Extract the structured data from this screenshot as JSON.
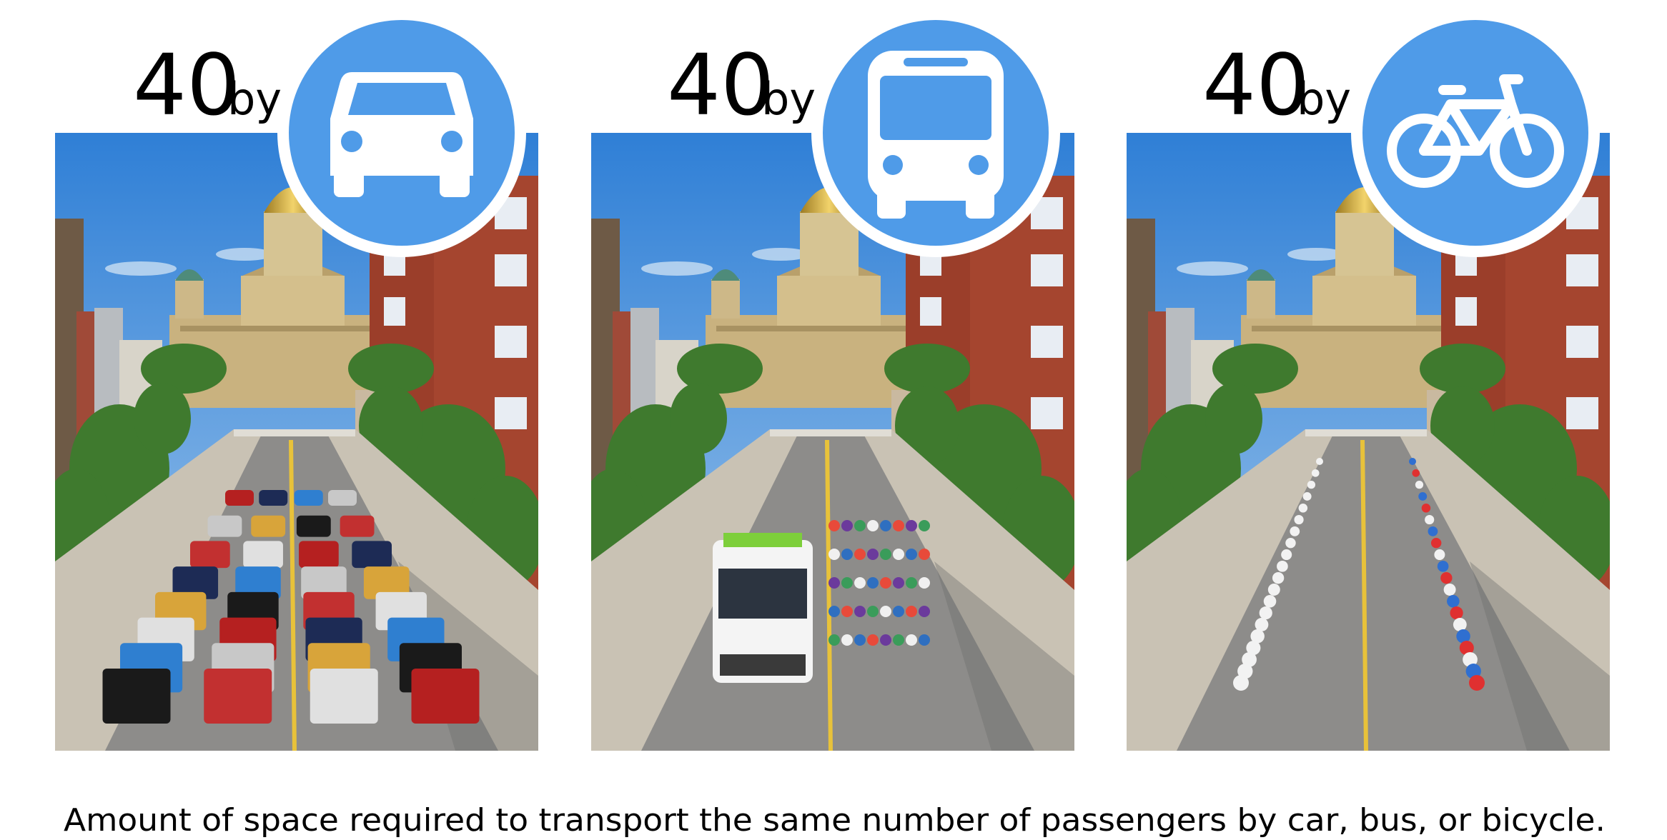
{
  "panels": [
    {
      "count": "40",
      "by": "by"
    },
    {
      "count": "40",
      "by": "by"
    },
    {
      "count": "40",
      "by": "by"
    }
  ],
  "caption": "Amount of space required to transport the same number of passengers by car, bus, or bicycle."
}
